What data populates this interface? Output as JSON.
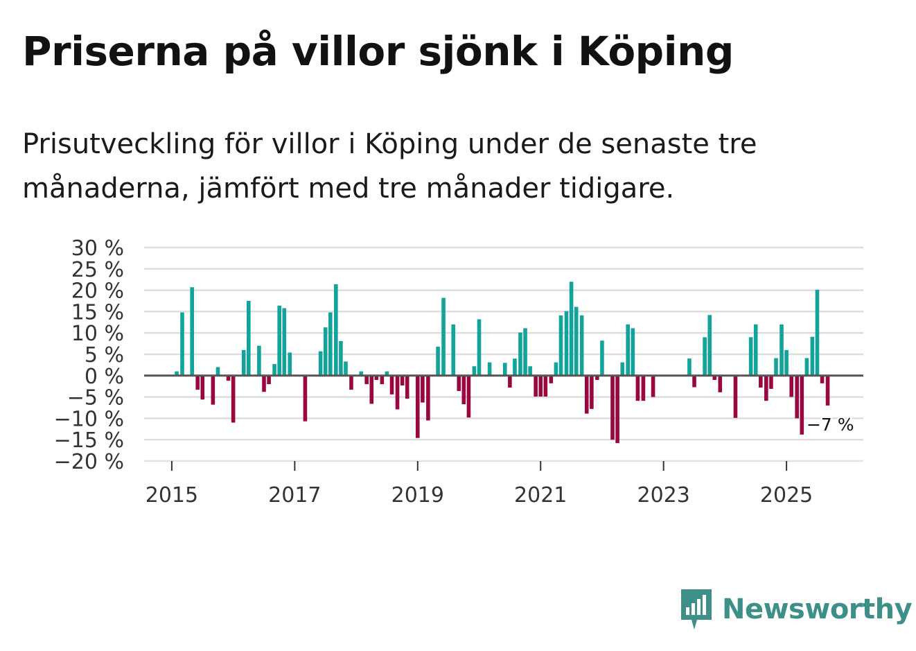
{
  "header": {
    "title": "Priserna på villor sjönk i Köping",
    "subtitle": "Prisutveckling för villor i Köping under de senaste tre månaderna, jämfört med tre månader tidigare."
  },
  "brand": {
    "name": "Newsworthy"
  },
  "colors": {
    "positive": "#12a39b",
    "negative": "#9a0740",
    "zero_line": "#555555",
    "grid": "#dddddd",
    "brand": "#3f8f89"
  },
  "chart_data": {
    "type": "bar",
    "title": "Priserna på villor sjönk i Köping",
    "xlabel": "",
    "ylabel": "",
    "ylim": [
      -20,
      30
    ],
    "xlim": [
      2014.55,
      2026.25
    ],
    "y_ticks": [
      30,
      25,
      20,
      15,
      10,
      5,
      0,
      -5,
      -10,
      -15,
      -20
    ],
    "y_tick_labels": [
      "30 %",
      "25 %",
      "20 %",
      "15 %",
      "10 %",
      "5 %",
      "0 %",
      "−5 %",
      "−10 %",
      "−15 %",
      "−20 %"
    ],
    "x_ticks": [
      2015,
      2017,
      2019,
      2021,
      2023,
      2025
    ],
    "x_tick_labels": [
      "2015",
      "2017",
      "2019",
      "2021",
      "2023",
      "2025"
    ],
    "grid": true,
    "end_label": "−7 %",
    "series": [
      {
        "name": "Prisutveckling",
        "x": [
          2015.08,
          2015.17,
          2015.33,
          2015.42,
          2015.5,
          2015.67,
          2015.75,
          2015.92,
          2016.0,
          2016.17,
          2016.25,
          2016.42,
          2016.5,
          2016.58,
          2016.67,
          2016.75,
          2016.83,
          2016.92,
          2017.17,
          2017.42,
          2017.5,
          2017.58,
          2017.67,
          2017.75,
          2017.83,
          2017.92,
          2018.08,
          2018.17,
          2018.25,
          2018.33,
          2018.42,
          2018.5,
          2018.58,
          2018.67,
          2018.75,
          2018.83,
          2019.0,
          2019.08,
          2019.17,
          2019.33,
          2019.42,
          2019.58,
          2019.67,
          2019.75,
          2019.83,
          2019.92,
          2020.0,
          2020.17,
          2020.42,
          2020.5,
          2020.58,
          2020.67,
          2020.75,
          2020.83,
          2020.92,
          2021.0,
          2021.08,
          2021.17,
          2021.25,
          2021.33,
          2021.42,
          2021.5,
          2021.58,
          2021.67,
          2021.75,
          2021.83,
          2021.92,
          2022.0,
          2022.17,
          2022.25,
          2022.33,
          2022.42,
          2022.5,
          2022.58,
          2022.67,
          2022.83,
          2023.42,
          2023.5,
          2023.67,
          2023.75,
          2023.83,
          2023.92,
          2024.17,
          2024.42,
          2024.5,
          2024.58,
          2024.67,
          2024.75,
          2024.83,
          2024.92,
          2025.0,
          2025.08,
          2025.17,
          2025.25,
          2025.33,
          2025.42,
          2025.5,
          2025.58,
          2025.67
        ],
        "values": [
          1,
          14.8,
          20.7,
          -3.3,
          -5.6,
          -6.8,
          2,
          -1.2,
          -11,
          6,
          17.5,
          7,
          -3.8,
          -2,
          2.7,
          16.4,
          15.8,
          5.4,
          -10.7,
          5.7,
          11.3,
          14.8,
          21.4,
          8.1,
          3.3,
          -3.3,
          1,
          -2,
          -6.6,
          -1,
          -2,
          1,
          -4.4,
          -7.9,
          -2.3,
          -5.4,
          -14.6,
          -6.3,
          -10.5,
          6.8,
          18.2,
          12,
          -3.6,
          -6.7,
          -9.8,
          2.2,
          13.2,
          3.1,
          3,
          -2.8,
          4,
          10.1,
          11.1,
          2.2,
          -4.9,
          -4.9,
          -4.9,
          -1.8,
          3.1,
          14.1,
          15.1,
          22,
          16.1,
          14.1,
          -8.9,
          -7.8,
          -1,
          8.2,
          -15,
          -15.8,
          3.1,
          12,
          11.1,
          -5.9,
          -5.9,
          -5,
          4,
          -2.7,
          9,
          14.2,
          -1,
          -3.9,
          -9.9,
          9,
          12,
          -2.8,
          -5.9,
          -3.1,
          4.1,
          12,
          6,
          -5,
          -10,
          -13.8,
          4.1,
          9.1,
          20.1,
          -1.8,
          -7
        ]
      }
    ]
  }
}
